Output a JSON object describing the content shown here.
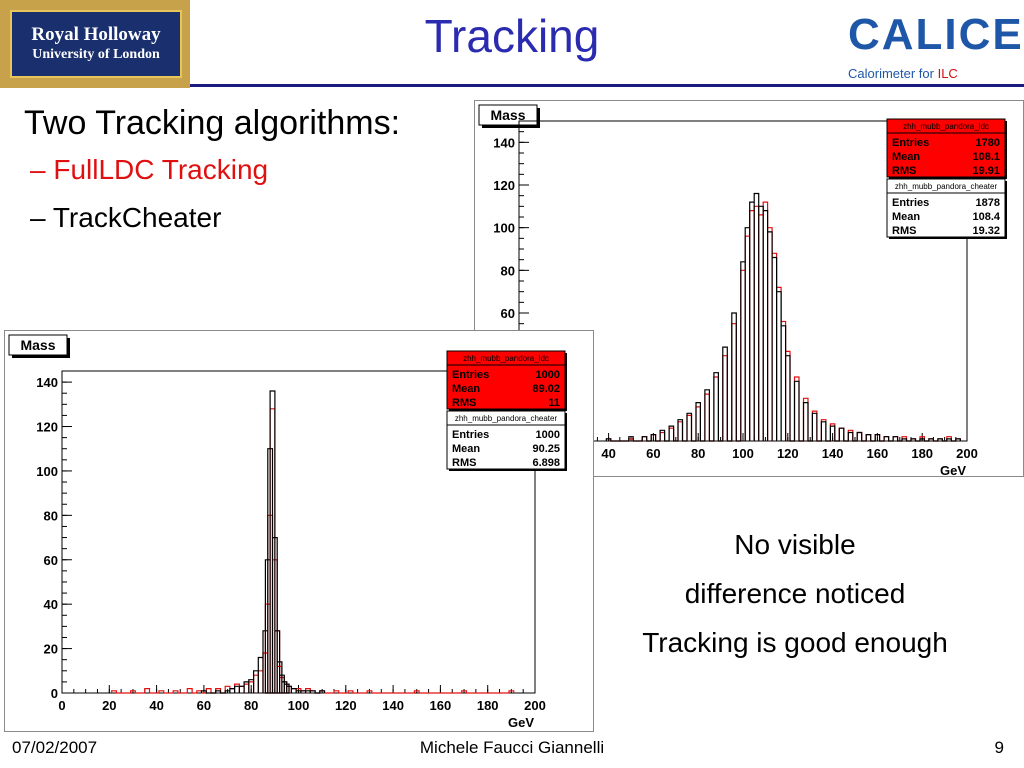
{
  "header": {
    "title": "Tracking",
    "left_logo": {
      "line1": "Royal Holloway",
      "line2": "University of London"
    },
    "right_logo": {
      "word": "CALICE",
      "sub_prefix": "Calorimeter for ",
      "sub_ilc": "ILC"
    }
  },
  "bullets": {
    "main": "Two Tracking algorithms:",
    "items": [
      {
        "dash": "–",
        "text": "FullLDC Tracking",
        "color": "#e01010"
      },
      {
        "dash": "–",
        "text": "TrackCheater",
        "color": "#000000"
      }
    ]
  },
  "caption": {
    "lines": [
      "No visible",
      "difference noticed",
      "Tracking is good enough"
    ]
  },
  "footer": {
    "date": "07/02/2007",
    "author": "Michele Faucci Giannelli",
    "page": "9"
  },
  "colors": {
    "fullldc": "#e01010",
    "trackcheater": "#000000",
    "stats_red": "#ff0000",
    "title_blue": "#2b2bb0"
  },
  "chart_data": [
    {
      "type": "histogram",
      "title": "Mass",
      "xlabel": "GeV",
      "ylabel": "",
      "xlim": [
        0,
        200
      ],
      "ylim": [
        0,
        145
      ],
      "x_ticks": [
        0,
        20,
        40,
        60,
        80,
        100,
        120,
        140,
        160,
        180,
        200
      ],
      "y_ticks": [
        0,
        20,
        40,
        60,
        80,
        100,
        120,
        140
      ],
      "stats": [
        {
          "name": "zhh_mubb_pandora_ldc",
          "entries": "1000",
          "mean": "89.02",
          "rms": "11",
          "highlight": true
        },
        {
          "name": "zhh_mubb_pandora_cheater",
          "entries": "1000",
          "mean": "90.25",
          "rms": "6.898",
          "highlight": false
        }
      ],
      "series": [
        {
          "name": "zhh_mubb_pandora_ldc",
          "color": "#e01010",
          "x": [
            22,
            30,
            36,
            42,
            48,
            54,
            58,
            62,
            66,
            70,
            72,
            74,
            76,
            78,
            80,
            82,
            84,
            86,
            87,
            88,
            89,
            90,
            91,
            92,
            93,
            94,
            95,
            96,
            98,
            100,
            102,
            104,
            106,
            110,
            116,
            122,
            130,
            140,
            150,
            160,
            170,
            180,
            190
          ],
          "y": [
            1,
            1,
            2,
            1,
            1,
            2,
            1,
            2,
            2,
            3,
            2,
            4,
            3,
            4,
            5,
            8,
            10,
            18,
            40,
            80,
            128,
            60,
            28,
            12,
            7,
            5,
            4,
            3,
            2,
            2,
            1,
            2,
            1,
            1,
            1,
            1,
            1,
            0,
            1,
            0,
            1,
            0,
            1
          ]
        },
        {
          "name": "zhh_mubb_pandora_cheater",
          "color": "#000000",
          "x": [
            60,
            66,
            70,
            72,
            74,
            76,
            78,
            80,
            82,
            84,
            86,
            87,
            88,
            89,
            90,
            91,
            92,
            93,
            94,
            95,
            96,
            98,
            100,
            102,
            104,
            106,
            110
          ],
          "y": [
            1,
            1,
            1,
            2,
            3,
            3,
            5,
            6,
            10,
            16,
            28,
            60,
            110,
            136,
            70,
            28,
            14,
            8,
            5,
            4,
            3,
            2,
            1,
            1,
            1,
            1,
            1
          ]
        }
      ]
    },
    {
      "type": "histogram",
      "title": "Mass",
      "xlabel": "GeV",
      "ylabel": "",
      "xlim": [
        0,
        200
      ],
      "ylim": [
        0,
        150
      ],
      "x_ticks": [
        40,
        60,
        80,
        100,
        120,
        140,
        160,
        180,
        200
      ],
      "y_ticks": [
        60,
        80,
        100,
        120,
        140
      ],
      "stats": [
        {
          "name": "zhh_mubb_pandora_ldc",
          "entries": "1780",
          "mean": "108.1",
          "rms": "19.91",
          "highlight": true
        },
        {
          "name": "zhh_mubb_pandora_cheater",
          "entries": "1878",
          "mean": "108.4",
          "rms": "19.32",
          "highlight": false
        }
      ],
      "series": [
        {
          "name": "zhh_mubb_pandora_ldc",
          "color": "#e01010",
          "x": [
            40,
            50,
            56,
            60,
            64,
            68,
            72,
            76,
            80,
            84,
            88,
            92,
            96,
            100,
            102,
            104,
            106,
            108,
            110,
            112,
            114,
            116,
            118,
            120,
            124,
            128,
            132,
            136,
            140,
            144,
            148,
            152,
            156,
            160,
            164,
            168,
            172,
            176,
            180,
            184,
            188,
            192,
            196
          ],
          "y": [
            1,
            1,
            2,
            3,
            4,
            6,
            9,
            12,
            16,
            22,
            30,
            40,
            55,
            80,
            96,
            108,
            110,
            106,
            112,
            100,
            88,
            72,
            56,
            42,
            30,
            20,
            14,
            10,
            8,
            6,
            5,
            4,
            3,
            3,
            2,
            2,
            2,
            1,
            2,
            1,
            1,
            2,
            1
          ]
        },
        {
          "name": "zhh_mubb_pandora_cheater",
          "color": "#000000",
          "x": [
            40,
            50,
            56,
            60,
            64,
            68,
            72,
            76,
            80,
            84,
            88,
            92,
            96,
            100,
            102,
            104,
            106,
            108,
            110,
            112,
            114,
            116,
            118,
            120,
            124,
            128,
            132,
            136,
            140,
            144,
            148,
            152,
            156,
            160,
            164,
            168,
            172,
            176,
            180,
            184,
            188,
            192,
            196
          ],
          "y": [
            1,
            2,
            2,
            3,
            5,
            7,
            10,
            13,
            18,
            24,
            32,
            44,
            60,
            84,
            100,
            112,
            116,
            110,
            108,
            98,
            86,
            70,
            54,
            40,
            28,
            18,
            13,
            9,
            7,
            6,
            4,
            4,
            3,
            3,
            2,
            2,
            1,
            1,
            1,
            1,
            1,
            1,
            1
          ]
        }
      ]
    }
  ]
}
